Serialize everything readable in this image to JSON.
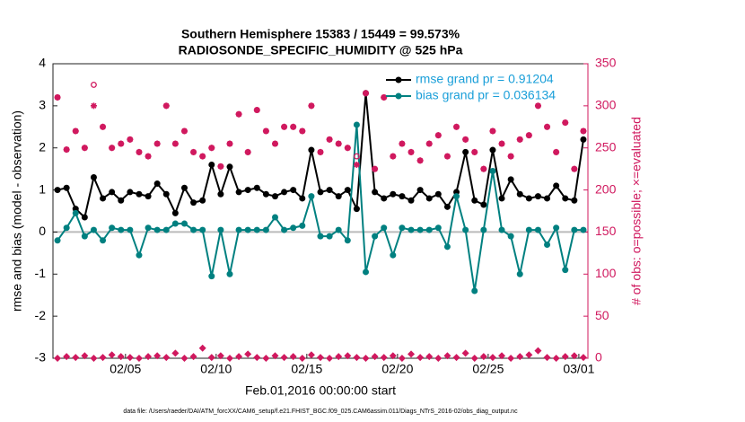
{
  "chart_data": {
    "type": "line",
    "title": "Southern Hemisphere 15383 / 15449 = 99.573%",
    "subtitle": "RADIOSONDE_SPECIFIC_HUMIDITY @ 525 hPa",
    "x_label": "Feb.01,2016 00:00:00 start",
    "y_label": "rmse and bias (model - observation)",
    "y2_label": "# of obs: o=possible; ×=evaluated",
    "footnote": "data file: /Users/raeder/DAI/ATM_forcXX/CAM6_setup/f.e21.FHIST_BGC.f09_025.CAM6assim.011/Diags_NTrS_2016-02/obs_diag_output.nc",
    "legend": "upper right",
    "xlim": [
      0,
      29.5
    ],
    "xticks": [
      {
        "value": 4,
        "label": "02/05"
      },
      {
        "value": 9,
        "label": "02/10"
      },
      {
        "value": 14,
        "label": "02/15"
      },
      {
        "value": 19,
        "label": "02/20"
      },
      {
        "value": 24,
        "label": "02/25"
      },
      {
        "value": 29,
        "label": "03/01"
      }
    ],
    "ylim": [
      -3,
      4
    ],
    "yticks": [
      -3,
      -2,
      -1,
      0,
      1,
      2,
      3,
      4
    ],
    "y2lim": [
      0,
      350
    ],
    "y2ticks": [
      0,
      50,
      100,
      150,
      200,
      250,
      300,
      350
    ],
    "y2_color": "#d0185e",
    "x": [
      0.25,
      0.75,
      1.25,
      1.75,
      2.25,
      2.75,
      3.25,
      3.75,
      4.25,
      4.75,
      5.25,
      5.75,
      6.25,
      6.75,
      7.25,
      7.75,
      8.25,
      8.75,
      9.25,
      9.75,
      10.25,
      10.75,
      11.25,
      11.75,
      12.25,
      12.75,
      13.25,
      13.75,
      14.25,
      14.75,
      15.25,
      15.75,
      16.25,
      16.75,
      17.25,
      17.75,
      18.25,
      18.75,
      19.25,
      19.75,
      20.25,
      20.75,
      21.25,
      21.75,
      22.25,
      22.75,
      23.25,
      23.75,
      24.25,
      24.75,
      25.25,
      25.75,
      26.25,
      26.75,
      27.25,
      27.75,
      28.25,
      28.75,
      29.25
    ],
    "series": [
      {
        "name": "rmse grand pr = 0.91204",
        "color": "#000000",
        "marker": "circle",
        "values": [
          1.0,
          1.05,
          0.55,
          0.35,
          1.3,
          0.8,
          0.95,
          0.75,
          0.95,
          0.9,
          0.85,
          1.15,
          0.9,
          0.45,
          1.05,
          0.7,
          0.75,
          1.6,
          0.9,
          1.55,
          0.95,
          1.0,
          1.05,
          0.9,
          0.85,
          0.95,
          1.0,
          0.8,
          1.95,
          0.95,
          1.0,
          0.85,
          1.0,
          0.55,
          3.3,
          0.95,
          0.8,
          0.9,
          0.85,
          0.75,
          1.0,
          0.8,
          0.9,
          0.6,
          0.95,
          1.9,
          0.75,
          0.65,
          1.95,
          0.8,
          1.25,
          0.9,
          0.8,
          0.85,
          0.8,
          1.1,
          0.8,
          0.75,
          2.2
        ]
      },
      {
        "name": "bias grand pr = 0.036134",
        "color": "#008080",
        "marker": "circle",
        "values": [
          -0.2,
          0.1,
          0.45,
          -0.1,
          0.05,
          -0.2,
          0.1,
          0.05,
          0.05,
          -0.55,
          0.1,
          0.05,
          0.05,
          0.2,
          0.2,
          0.05,
          0.05,
          -1.05,
          0.05,
          -1.0,
          0.05,
          0.05,
          0.05,
          0.05,
          0.35,
          0.05,
          0.1,
          0.15,
          0.85,
          -0.1,
          -0.1,
          0.05,
          -0.2,
          2.55,
          -0.95,
          -0.1,
          0.1,
          -0.55,
          0.1,
          0.05,
          0.05,
          0.05,
          0.1,
          -0.35,
          0.85,
          0.05,
          -1.4,
          0.05,
          1.45,
          0.05,
          -0.1,
          -1.0,
          0.05,
          0.05,
          -0.3,
          0.1,
          -0.9,
          0.05,
          0.05
        ]
      },
      {
        "axis": "y2",
        "color": "#d0185e",
        "marker": "open-circle",
        "values": [
          310,
          248,
          270,
          250,
          325,
          275,
          250,
          255,
          260,
          245,
          240,
          255,
          300,
          255,
          270,
          245,
          240,
          250,
          228,
          255,
          290,
          245,
          295,
          270,
          255,
          275,
          275,
          270,
          300,
          245,
          260,
          255,
          250,
          240,
          315,
          225,
          310,
          240,
          255,
          245,
          235,
          255,
          265,
          240,
          275,
          260,
          245,
          225,
          270,
          255,
          240,
          260,
          265,
          300,
          275,
          245,
          280,
          225,
          270
        ]
      },
      {
        "axis": "y2",
        "color": "#d0185e",
        "marker": "asterisk",
        "values": [
          310,
          248,
          270,
          250,
          300,
          275,
          250,
          255,
          260,
          245,
          240,
          255,
          300,
          255,
          270,
          245,
          240,
          250,
          228,
          255,
          290,
          245,
          295,
          270,
          255,
          275,
          275,
          270,
          300,
          245,
          260,
          255,
          250,
          230,
          315,
          225,
          310,
          240,
          255,
          245,
          235,
          255,
          265,
          240,
          275,
          260,
          245,
          225,
          270,
          255,
          240,
          260,
          265,
          300,
          275,
          245,
          280,
          225,
          270
        ]
      },
      {
        "axis": "y2",
        "color": "#d0185e",
        "marker": "diamond",
        "values": [
          0,
          2,
          1,
          3,
          0,
          1,
          4,
          2,
          1,
          0,
          2,
          3,
          1,
          6,
          0,
          2,
          12,
          1,
          3,
          0,
          2,
          5,
          1,
          0,
          3,
          1,
          2,
          0,
          4,
          1,
          0,
          2,
          3,
          1,
          0,
          2,
          1,
          3,
          0,
          5,
          1,
          2,
          0,
          3,
          1,
          6,
          0,
          2,
          1,
          3,
          0,
          2,
          4,
          9,
          1,
          0,
          2,
          3,
          1
        ]
      }
    ]
  }
}
